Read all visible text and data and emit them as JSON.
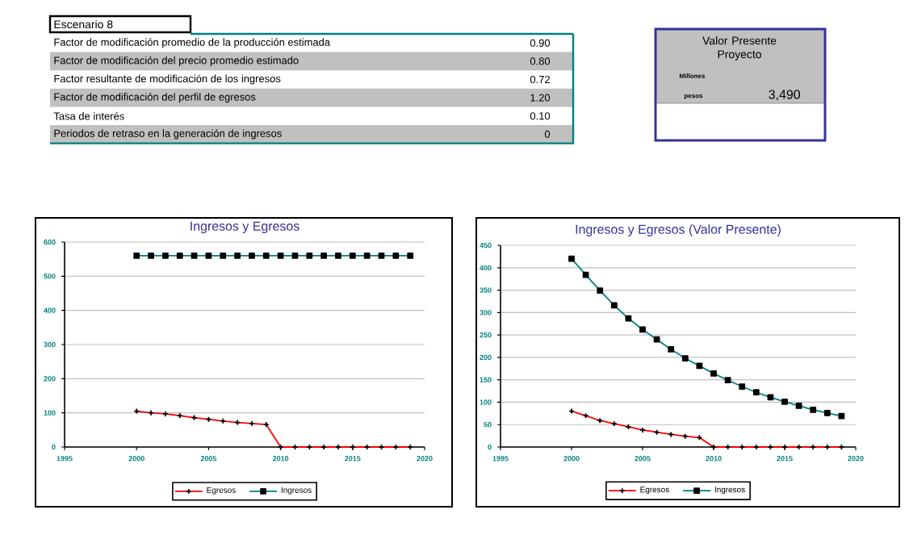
{
  "chart_data": [
    {
      "type": "other",
      "title": "Escenario 8",
      "categories": [
        "Factor de modificación promedio de la producción estimada",
        "Factor de modificación del precio promedio estimado",
        "Factor resultante de modificación de los ingresos",
        "Factor de modificación del perfil de egresos",
        "Tasa de interés",
        "Periodos de retraso en la generación de ingresos"
      ],
      "value_labels": [
        "0.90",
        "0.80",
        "0.72",
        "1.20",
        "0.10",
        "0"
      ]
    },
    {
      "type": "other",
      "title": "Valor Presente Proyecto",
      "annotations": [
        "Millones",
        "pesos"
      ],
      "value_labels": [
        "3,490"
      ]
    },
    {
      "type": "line",
      "title": "Ingresos y Egresos",
      "x": [
        2000,
        2001,
        2002,
        2003,
        2004,
        2005,
        2006,
        2007,
        2008,
        2009,
        2010,
        2011,
        2012,
        2013,
        2014,
        2015,
        2016,
        2017,
        2018,
        2019
      ],
      "series": [
        {
          "name": "Egresos",
          "color": "#ff0000",
          "marker": "cross",
          "values": [
            105,
            100,
            97,
            92,
            86,
            81,
            76,
            72,
            69,
            66,
            0,
            0,
            0,
            0,
            0,
            0,
            0,
            0,
            0,
            0
          ]
        },
        {
          "name": "Ingresos",
          "color": "#008080",
          "marker": "square",
          "values": [
            560,
            560,
            560,
            560,
            560,
            560,
            560,
            560,
            560,
            560,
            560,
            560,
            560,
            560,
            560,
            560,
            560,
            560,
            560,
            560
          ]
        }
      ],
      "xlim": [
        1995,
        2020
      ],
      "xticks": [
        1995,
        2000,
        2005,
        2010,
        2015,
        2020
      ],
      "ylim": [
        0,
        600
      ],
      "yticks": [
        0,
        100,
        200,
        300,
        400,
        500,
        600
      ],
      "grid": "y",
      "legend": "bottom"
    },
    {
      "type": "line",
      "title": "Ingresos y Egresos (Valor Presente)",
      "x": [
        2000,
        2001,
        2002,
        2003,
        2004,
        2005,
        2006,
        2007,
        2008,
        2009,
        2010,
        2011,
        2012,
        2013,
        2014,
        2015,
        2016,
        2017,
        2018,
        2019
      ],
      "series": [
        {
          "name": "Egresos",
          "color": "#ff0000",
          "marker": "cross",
          "values": [
            80,
            70,
            59,
            52,
            45,
            38,
            33,
            28,
            24,
            21,
            0,
            0,
            0,
            0,
            0,
            0,
            0,
            0,
            0,
            0
          ]
        },
        {
          "name": "Ingresos",
          "color": "#008080",
          "marker": "square",
          "values": [
            420,
            384,
            349,
            316,
            287,
            262,
            240,
            218,
            198,
            181,
            164,
            149,
            135,
            122,
            111,
            101,
            92,
            83,
            76,
            69
          ]
        }
      ],
      "xlim": [
        1995,
        2020
      ],
      "xticks": [
        1995,
        2000,
        2005,
        2010,
        2015,
        2020
      ],
      "ylim": [
        0,
        450
      ],
      "yticks": [
        0,
        50,
        100,
        150,
        200,
        250,
        300,
        350,
        400,
        450
      ],
      "grid": "y",
      "legend": "bottom"
    }
  ]
}
